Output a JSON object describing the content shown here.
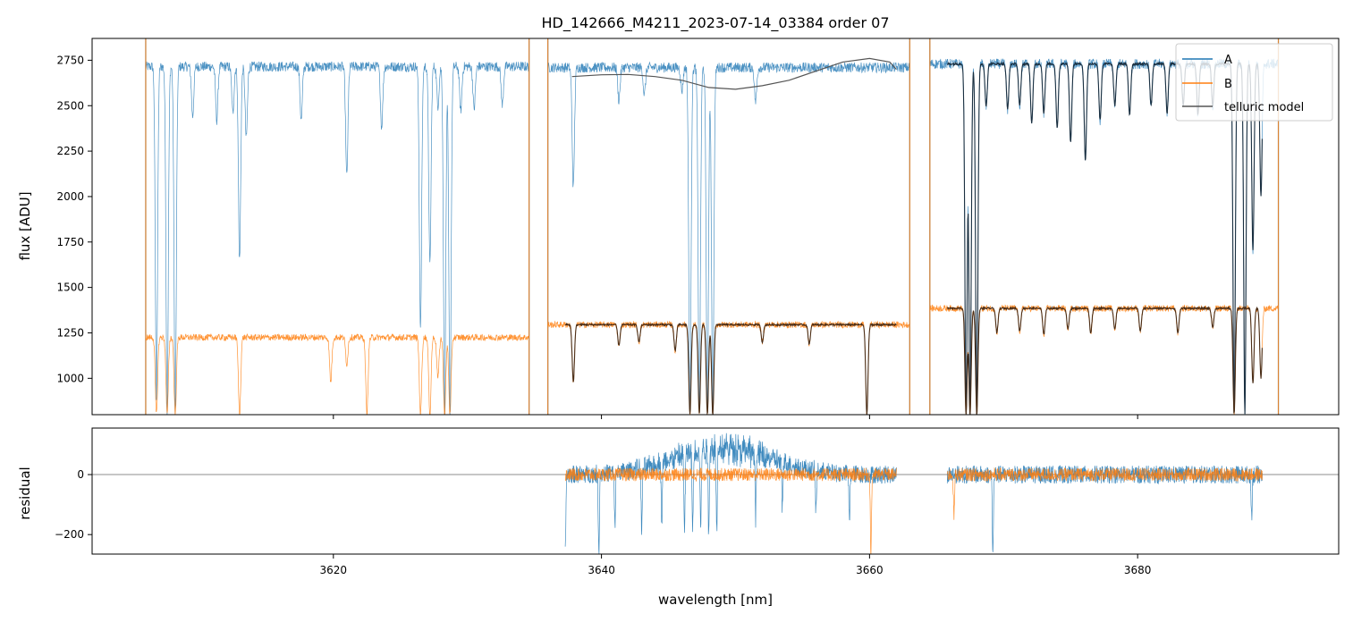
{
  "chart_data": [
    {
      "type": "line",
      "title": "HD_142666_M4211_2023-07-14_03384  order 07",
      "xlabel": "",
      "ylabel": "flux [ADU]",
      "xlim": [
        3602,
        3695
      ],
      "ylim": [
        800,
        2870
      ],
      "yticks": [
        1000,
        1250,
        1500,
        1750,
        2000,
        2250,
        2500,
        2750
      ],
      "yticklabels": [
        "1000",
        "1250",
        "1500",
        "1750",
        "2000",
        "2250",
        "2500",
        "2750"
      ],
      "xticks": [
        3620,
        3640,
        3660,
        3680
      ],
      "legend": {
        "placement": "top-right",
        "entries": [
          {
            "label": "A",
            "color": "#1f77b4"
          },
          {
            "label": "B",
            "color": "#ff7f0e"
          },
          {
            "label": "telluric model",
            "color": "#555555"
          }
        ]
      },
      "series": [
        {
          "name": "A",
          "color": "#1f77b4",
          "segments": [
            {
              "x_start": 3606.0,
              "x_end": 3634.6,
              "level": 2715
            },
            {
              "x_start": 3636.0,
              "x_end": 3663.0,
              "level": 2710
            },
            {
              "x_start": 3664.5,
              "x_end": 3690.5,
              "level": 2730
            }
          ],
          "absorption_lines": [
            [
              3606.8,
              900
            ],
            [
              3607.6,
              800
            ],
            [
              3608.2,
              800
            ],
            [
              3609.5,
              2440
            ],
            [
              3611.3,
              2420
            ],
            [
              3612.5,
              2460
            ],
            [
              3613.0,
              1650
            ],
            [
              3613.5,
              2320
            ],
            [
              3617.6,
              2420
            ],
            [
              3621.0,
              2110
            ],
            [
              3623.6,
              2380
            ],
            [
              3626.5,
              1270
            ],
            [
              3627.2,
              1620
            ],
            [
              3627.8,
              2500
            ],
            [
              3628.3,
              800
            ],
            [
              3628.7,
              800
            ],
            [
              3629.5,
              2470
            ],
            [
              3630.5,
              2480
            ],
            [
              3632.6,
              2500
            ],
            [
              3637.9,
              2050
            ],
            [
              3641.3,
              2530
            ],
            [
              3643.2,
              2560
            ],
            [
              3646.0,
              2580
            ],
            [
              3646.6,
              800
            ],
            [
              3647.3,
              800
            ],
            [
              3647.9,
              800
            ],
            [
              3648.3,
              800
            ],
            [
              3651.5,
              2520
            ],
            [
              3667.2,
              800
            ],
            [
              3667.5,
              800
            ],
            [
              3668.0,
              800
            ],
            [
              3668.7,
              2500
            ],
            [
              3670.3,
              2480
            ],
            [
              3671.2,
              2500
            ],
            [
              3672.1,
              2400
            ],
            [
              3673.0,
              2460
            ],
            [
              3674.0,
              2380
            ],
            [
              3675.0,
              2300
            ],
            [
              3676.1,
              2200
            ],
            [
              3677.2,
              2420
            ],
            [
              3678.3,
              2500
            ],
            [
              3679.4,
              2450
            ],
            [
              3681.0,
              2500
            ],
            [
              3682.2,
              2460
            ],
            [
              3683.4,
              2500
            ],
            [
              3684.5,
              2450
            ],
            [
              3685.6,
              2500
            ],
            [
              3687.2,
              800
            ],
            [
              3688.0,
              800
            ],
            [
              3688.6,
              1700
            ],
            [
              3689.2,
              2000
            ]
          ],
          "spikes_x": [
            3606.0,
            3634.6,
            3636.0,
            3663.0,
            3664.5,
            3690.5
          ]
        },
        {
          "name": "B",
          "color": "#ff7f0e",
          "segments": [
            {
              "x_start": 3606.0,
              "x_end": 3634.6,
              "level": 1225
            },
            {
              "x_start": 3636.0,
              "x_end": 3663.0,
              "level": 1295
            },
            {
              "x_start": 3664.5,
              "x_end": 3690.5,
              "level": 1385
            }
          ],
          "absorption_lines": [
            [
              3606.8,
              800
            ],
            [
              3607.6,
              800
            ],
            [
              3608.2,
              800
            ],
            [
              3613.0,
              800
            ],
            [
              3619.8,
              980
            ],
            [
              3621.0,
              1080
            ],
            [
              3622.5,
              800
            ],
            [
              3626.5,
              800
            ],
            [
              3627.2,
              800
            ],
            [
              3627.8,
              1000
            ],
            [
              3628.3,
              800
            ],
            [
              3628.7,
              800
            ],
            [
              3637.9,
              980
            ],
            [
              3641.3,
              1180
            ],
            [
              3642.8,
              1200
            ],
            [
              3645.5,
              1150
            ],
            [
              3646.6,
              800
            ],
            [
              3647.3,
              800
            ],
            [
              3647.9,
              800
            ],
            [
              3648.3,
              800
            ],
            [
              3652.0,
              1200
            ],
            [
              3655.5,
              1190
            ],
            [
              3659.8,
              800
            ],
            [
              3667.2,
              800
            ],
            [
              3667.5,
              800
            ],
            [
              3668.0,
              800
            ],
            [
              3669.5,
              1250
            ],
            [
              3671.2,
              1260
            ],
            [
              3673.0,
              1240
            ],
            [
              3674.8,
              1270
            ],
            [
              3676.5,
              1250
            ],
            [
              3678.3,
              1270
            ],
            [
              3680.2,
              1260
            ],
            [
              3683.0,
              1250
            ],
            [
              3685.6,
              1280
            ],
            [
              3687.2,
              800
            ],
            [
              3688.6,
              970
            ],
            [
              3689.2,
              1000
            ]
          ],
          "spikes_x": [
            3606.0,
            3634.6,
            3636.0,
            3663.0,
            3664.5,
            3690.5
          ]
        },
        {
          "name": "telluric model",
          "color": "#555555",
          "curve_A": [
            [
              3637.8,
              2660
            ],
            [
              3640.0,
              2670
            ],
            [
              3642.0,
              2672
            ],
            [
              3644.0,
              2660
            ],
            [
              3646.0,
              2640
            ],
            [
              3648.0,
              2600
            ],
            [
              3650.0,
              2590
            ],
            [
              3652.0,
              2610
            ],
            [
              3654.0,
              2640
            ],
            [
              3656.0,
              2690
            ],
            [
              3658.0,
              2740
            ],
            [
              3660.0,
              2760
            ],
            [
              3661.5,
              2740
            ],
            [
              3662.0,
              2700
            ]
          ],
          "model_ranges": [
            [
              3637.3,
              3662.0
            ],
            [
              3665.8,
              3689.3
            ]
          ]
        }
      ]
    },
    {
      "type": "line",
      "title": "",
      "xlabel": "wavelength [nm]",
      "ylabel": "residual",
      "xlim": [
        3602,
        3695
      ],
      "ylim": [
        -265,
        155
      ],
      "yticks": [
        -200,
        0
      ],
      "yticklabels": [
        "−200",
        "0"
      ],
      "xticks": [
        3620,
        3640,
        3660,
        3680
      ],
      "xticklabels": [
        "3620",
        "3640",
        "3660",
        "3680"
      ],
      "zero_line": true,
      "series": [
        {
          "name": "A",
          "color": "#1f77b4",
          "ranges": [
            [
              3637.3,
              3662.0
            ],
            [
              3665.8,
              3689.3
            ]
          ],
          "noise_amplitude": 30,
          "bump": {
            "center": 3649.0,
            "width": 5.0,
            "height": 90
          },
          "negative_spikes": [
            [
              3637.3,
              -265
            ],
            [
              3639.8,
              -265
            ],
            [
              3641.0,
              -180
            ],
            [
              3643.0,
              -210
            ],
            [
              3644.5,
              -190
            ],
            [
              3646.2,
              -265
            ],
            [
              3646.8,
              -265
            ],
            [
              3647.4,
              -265
            ],
            [
              3648.0,
              -265
            ],
            [
              3648.6,
              -265
            ],
            [
              3651.5,
              -200
            ],
            [
              3653.5,
              -150
            ],
            [
              3656.0,
              -130
            ],
            [
              3658.5,
              -160
            ],
            [
              3669.2,
              -265
            ],
            [
              3688.5,
              -140
            ]
          ]
        },
        {
          "name": "B",
          "color": "#ff7f0e",
          "ranges": [
            [
              3637.3,
              3662.0
            ],
            [
              3665.8,
              3689.3
            ]
          ],
          "noise_amplitude": 22,
          "negative_spikes": [
            [
              3660.1,
              -265
            ],
            [
              3666.3,
              -140
            ]
          ]
        }
      ]
    }
  ]
}
